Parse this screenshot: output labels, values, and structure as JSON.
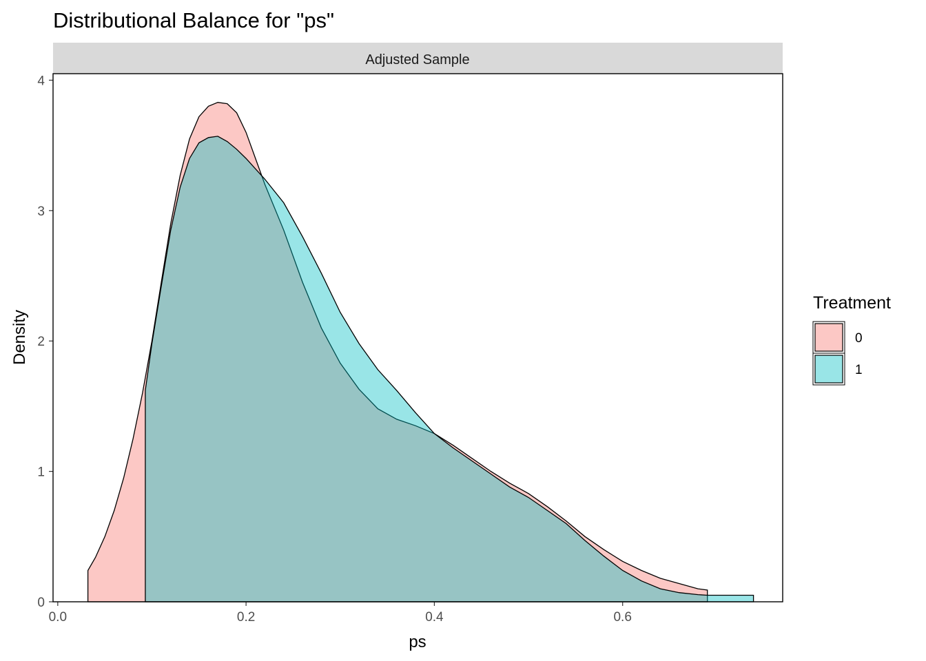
{
  "chart_data": {
    "type": "area",
    "title": "Distributional Balance for \"ps\"",
    "facet_label": "Adjusted Sample",
    "xlabel": "ps",
    "ylabel": "Density",
    "xlim": [
      -0.005,
      0.77
    ],
    "ylim": [
      0,
      4.05
    ],
    "x_ticks": [
      0.0,
      0.2,
      0.4,
      0.6
    ],
    "x_tick_labels": [
      "0.0",
      "0.2",
      "0.4",
      "0.6"
    ],
    "y_ticks": [
      0,
      1,
      2,
      3,
      4
    ],
    "y_tick_labels": [
      "0",
      "1",
      "2",
      "3",
      "4"
    ],
    "grid": false,
    "legend": {
      "title": "Treatment",
      "position": "right"
    },
    "series": [
      {
        "name": "0",
        "color": "#F8766D",
        "x": [
          0.032,
          0.04,
          0.05,
          0.06,
          0.07,
          0.08,
          0.09,
          0.1,
          0.11,
          0.12,
          0.13,
          0.14,
          0.15,
          0.16,
          0.17,
          0.18,
          0.19,
          0.2,
          0.21,
          0.22,
          0.24,
          0.26,
          0.28,
          0.3,
          0.32,
          0.34,
          0.36,
          0.38,
          0.4,
          0.42,
          0.44,
          0.46,
          0.48,
          0.5,
          0.52,
          0.54,
          0.56,
          0.58,
          0.6,
          0.62,
          0.64,
          0.66,
          0.68,
          0.69
        ],
        "y": [
          0.24,
          0.34,
          0.5,
          0.7,
          0.95,
          1.25,
          1.6,
          2.0,
          2.45,
          2.9,
          3.27,
          3.55,
          3.72,
          3.8,
          3.83,
          3.82,
          3.75,
          3.6,
          3.4,
          3.2,
          2.85,
          2.45,
          2.1,
          1.83,
          1.63,
          1.48,
          1.4,
          1.35,
          1.29,
          1.2,
          1.1,
          1.0,
          0.91,
          0.83,
          0.73,
          0.62,
          0.5,
          0.4,
          0.31,
          0.24,
          0.18,
          0.14,
          0.1,
          0.09
        ]
      },
      {
        "name": "1",
        "color": "#00BFC4",
        "x": [
          0.093,
          0.1,
          0.11,
          0.12,
          0.13,
          0.14,
          0.15,
          0.16,
          0.17,
          0.18,
          0.19,
          0.2,
          0.22,
          0.24,
          0.26,
          0.28,
          0.3,
          0.32,
          0.34,
          0.36,
          0.38,
          0.4,
          0.42,
          0.44,
          0.46,
          0.48,
          0.5,
          0.52,
          0.54,
          0.56,
          0.58,
          0.6,
          0.62,
          0.64,
          0.66,
          0.68,
          0.69,
          0.7,
          0.72,
          0.739
        ],
        "y": [
          1.62,
          1.98,
          2.42,
          2.85,
          3.18,
          3.4,
          3.52,
          3.56,
          3.57,
          3.53,
          3.47,
          3.4,
          3.24,
          3.06,
          2.8,
          2.52,
          2.22,
          1.98,
          1.78,
          1.62,
          1.45,
          1.29,
          1.18,
          1.08,
          0.98,
          0.88,
          0.8,
          0.7,
          0.6,
          0.47,
          0.35,
          0.24,
          0.16,
          0.1,
          0.07,
          0.055,
          0.05,
          0.05,
          0.05,
          0.05
        ]
      }
    ]
  }
}
